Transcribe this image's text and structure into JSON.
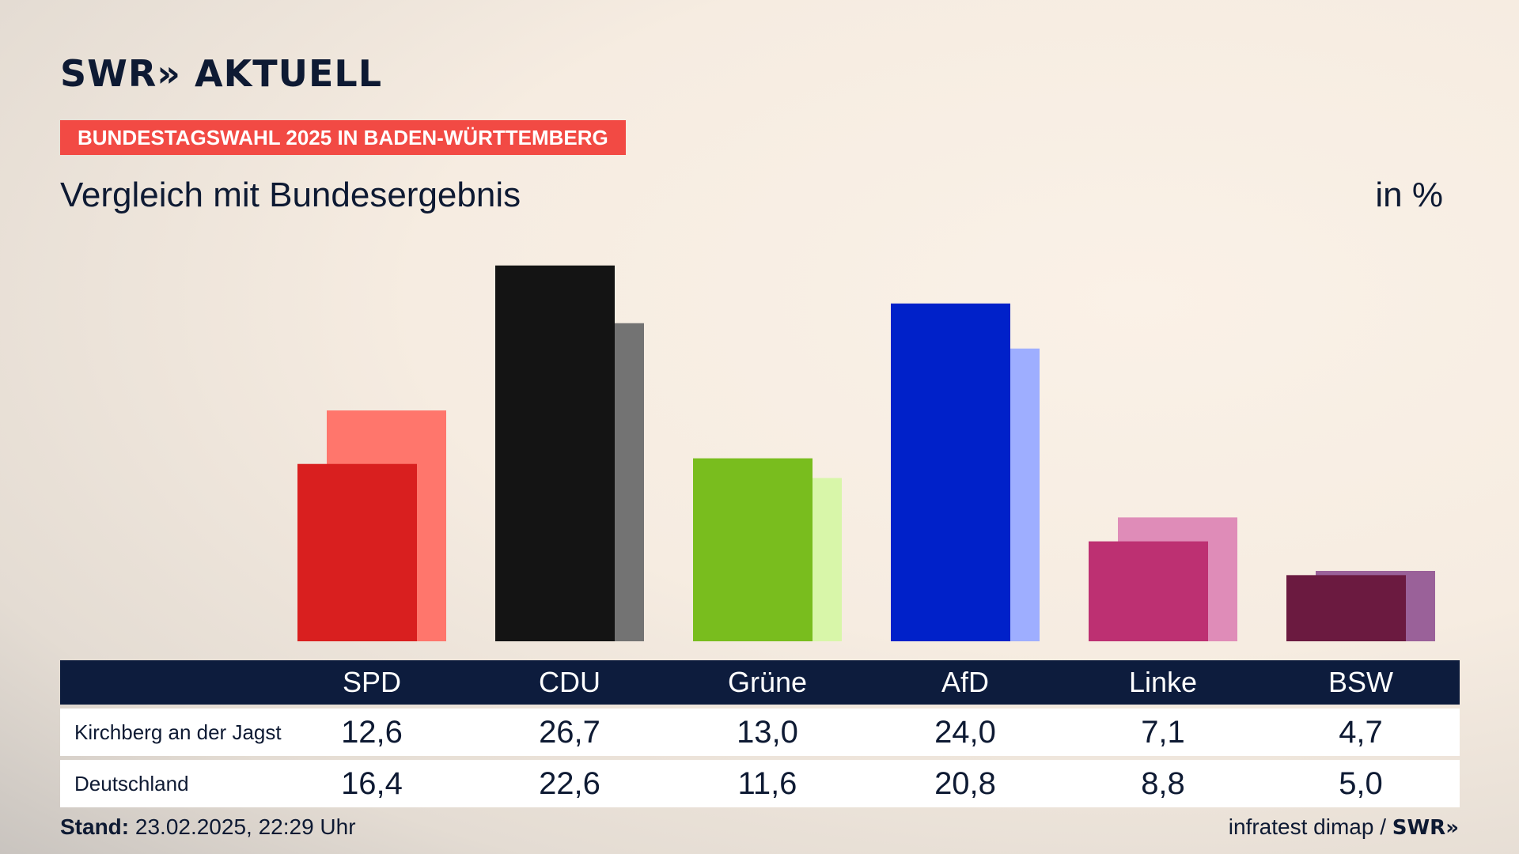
{
  "header": {
    "logo_text": "SWR» AKTUELL",
    "banner": "BUNDESTAGSWAHL 2025 IN BADEN-WÜRTTEMBERG",
    "subtitle": "Vergleich mit Bundesergebnis",
    "unit": "in %"
  },
  "chart_data": {
    "type": "bar",
    "categories": [
      "SPD",
      "CDU",
      "Grüne",
      "AfD",
      "Linke",
      "BSW"
    ],
    "series": [
      {
        "name": "Kirchberg an der Jagst",
        "values": [
          12.6,
          26.7,
          13.0,
          24.0,
          7.1,
          4.7
        ],
        "colors": [
          "#d91f1f",
          "#141414",
          "#79bd1e",
          "#0021c9",
          "#bd3072",
          "#6b1a40"
        ]
      },
      {
        "name": "Deutschland",
        "values": [
          16.4,
          22.6,
          11.6,
          20.8,
          8.8,
          5.0
        ],
        "colors": [
          "#ff766c",
          "#737373",
          "#d8f6a9",
          "#9eaeff",
          "#df8cb8",
          "#9a6199"
        ]
      }
    ],
    "ylim": [
      0,
      28
    ],
    "grid": false,
    "legend": "table-below"
  },
  "table": {
    "rows": [
      {
        "label": "Kirchberg an der Jagst",
        "values": [
          "12,6",
          "26,7",
          "13,0",
          "24,0",
          "7,1",
          "4,7"
        ]
      },
      {
        "label": "Deutschland",
        "values": [
          "16,4",
          "22,6",
          "11,6",
          "20,8",
          "8,8",
          "5,0"
        ]
      }
    ]
  },
  "footer": {
    "stand_label": "Stand:",
    "stand_value": " 23.02.2025, 22:29 Uhr",
    "source": "infratest dimap / ",
    "source_logo": "SWR»"
  }
}
